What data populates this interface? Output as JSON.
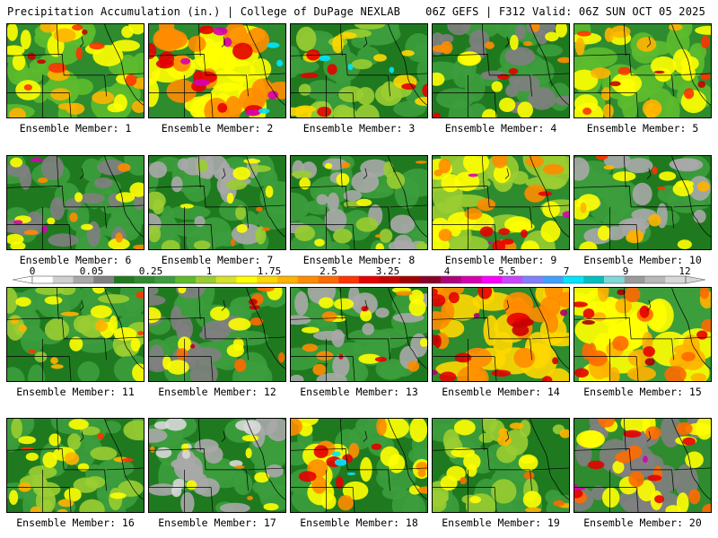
{
  "header": {
    "title_left": "Precipitation Accumulation (in.) | College of DuPage NEXLAB",
    "title_right": "06Z GEFS | F312 Valid: 06Z SUN OCT 05 2025"
  },
  "legend": {
    "ticks": [
      "0",
      "0.05",
      "0.25",
      "1",
      "1.75",
      "2.5",
      "3.25",
      "4",
      "5.5",
      "7",
      "9",
      "12"
    ],
    "colors": [
      "#ffffff",
      "#d0d0d0",
      "#a8a8a8",
      "#808080",
      "#1f7a1f",
      "#2e8b2e",
      "#3c9d3c",
      "#5dbb2e",
      "#9acd32",
      "#d4e22a",
      "#ffff00",
      "#ffd700",
      "#ffb300",
      "#ff8c00",
      "#ff6a00",
      "#ff3300",
      "#e60000",
      "#c80000",
      "#a50000",
      "#8b0028",
      "#b0007a",
      "#d600b0",
      "#ff00ff",
      "#cc44ff",
      "#8080ff",
      "#40a0ff",
      "#00e5ff",
      "#00c0c0",
      "#7fd8d8",
      "#9a9a9a",
      "#b8b8b8",
      "#d8d8d8"
    ]
  },
  "members": [
    {
      "label": "Ensemble Member: 1",
      "palette": [
        "#2e8b2e",
        "#5dbb2e",
        "#ffff00",
        "#ffb300",
        "#ff3300",
        "#c80000"
      ]
    },
    {
      "label": "Ensemble Member: 2",
      "palette": [
        "#2e8b2e",
        "#ffff00",
        "#ff8c00",
        "#e60000",
        "#d600b0",
        "#00e5ff"
      ]
    },
    {
      "label": "Ensemble Member: 3",
      "palette": [
        "#1f7a1f",
        "#3c9d3c",
        "#9acd32",
        "#ffd700",
        "#e60000",
        "#00e5ff"
      ]
    },
    {
      "label": "Ensemble Member: 4",
      "palette": [
        "#1f7a1f",
        "#3c9d3c",
        "#808080",
        "#ffff00",
        "#ff8c00",
        "#e60000"
      ]
    },
    {
      "label": "Ensemble Member: 5",
      "palette": [
        "#2e8b2e",
        "#5dbb2e",
        "#ffff00",
        "#ffb300",
        "#ff3300",
        "#c80000"
      ]
    },
    {
      "label": "Ensemble Member: 6",
      "palette": [
        "#1f7a1f",
        "#3c9d3c",
        "#808080",
        "#ffff00",
        "#ff8c00",
        "#d600b0"
      ]
    },
    {
      "label": "Ensemble Member: 7",
      "palette": [
        "#1f7a1f",
        "#3c9d3c",
        "#a8a8a8",
        "#9acd32",
        "#ffff00",
        "#ff6a00"
      ]
    },
    {
      "label": "Ensemble Member: 8",
      "palette": [
        "#1f7a1f",
        "#3c9d3c",
        "#a8a8a8",
        "#9acd32",
        "#ffff00",
        "#ff8c00"
      ]
    },
    {
      "label": "Ensemble Member: 9",
      "palette": [
        "#2e8b2e",
        "#9acd32",
        "#ffff00",
        "#ff8c00",
        "#e60000",
        "#d600b0"
      ]
    },
    {
      "label": "Ensemble Member: 10",
      "palette": [
        "#1f7a1f",
        "#3c9d3c",
        "#a8a8a8",
        "#ffff00",
        "#ffb300",
        "#ff3300"
      ]
    },
    {
      "label": "Ensemble Member: 11",
      "palette": [
        "#1f7a1f",
        "#3c9d3c",
        "#9acd32",
        "#ffff00",
        "#ffb300",
        "#ff3300"
      ]
    },
    {
      "label": "Ensemble Member: 12",
      "palette": [
        "#1f7a1f",
        "#3c9d3c",
        "#808080",
        "#ffff00",
        "#ff6a00",
        "#c80000"
      ]
    },
    {
      "label": "Ensemble Member: 13",
      "palette": [
        "#1f7a1f",
        "#3c9d3c",
        "#a8a8a8",
        "#ffff00",
        "#ff8c00",
        "#e60000"
      ]
    },
    {
      "label": "Ensemble Member: 14",
      "palette": [
        "#2e8b2e",
        "#ffd700",
        "#ff8c00",
        "#e60000",
        "#c80000",
        "#b0007a"
      ]
    },
    {
      "label": "Ensemble Member: 15",
      "palette": [
        "#3c9d3c",
        "#ffff00",
        "#ffb300",
        "#ff6a00",
        "#e60000",
        "#a50000"
      ]
    },
    {
      "label": "Ensemble Member: 16",
      "palette": [
        "#1f7a1f",
        "#3c9d3c",
        "#9acd32",
        "#ffff00",
        "#ffb300",
        "#ff3300"
      ]
    },
    {
      "label": "Ensemble Member: 17",
      "palette": [
        "#1f7a1f",
        "#3c9d3c",
        "#a8a8a8",
        "#d8d8d8",
        "#ffff00",
        "#ff8c00"
      ]
    },
    {
      "label": "Ensemble Member: 18",
      "palette": [
        "#1f7a1f",
        "#3c9d3c",
        "#ffff00",
        "#ff8c00",
        "#e60000",
        "#00e5ff"
      ]
    },
    {
      "label": "Ensemble Member: 19",
      "palette": [
        "#1f7a1f",
        "#3c9d3c",
        "#9acd32",
        "#ffff00",
        "#ffb300",
        "#ff6a00"
      ]
    },
    {
      "label": "Ensemble Member: 20",
      "palette": [
        "#2e8b2e",
        "#808080",
        "#ffff00",
        "#ff6a00",
        "#e60000",
        "#d600b0"
      ]
    }
  ]
}
